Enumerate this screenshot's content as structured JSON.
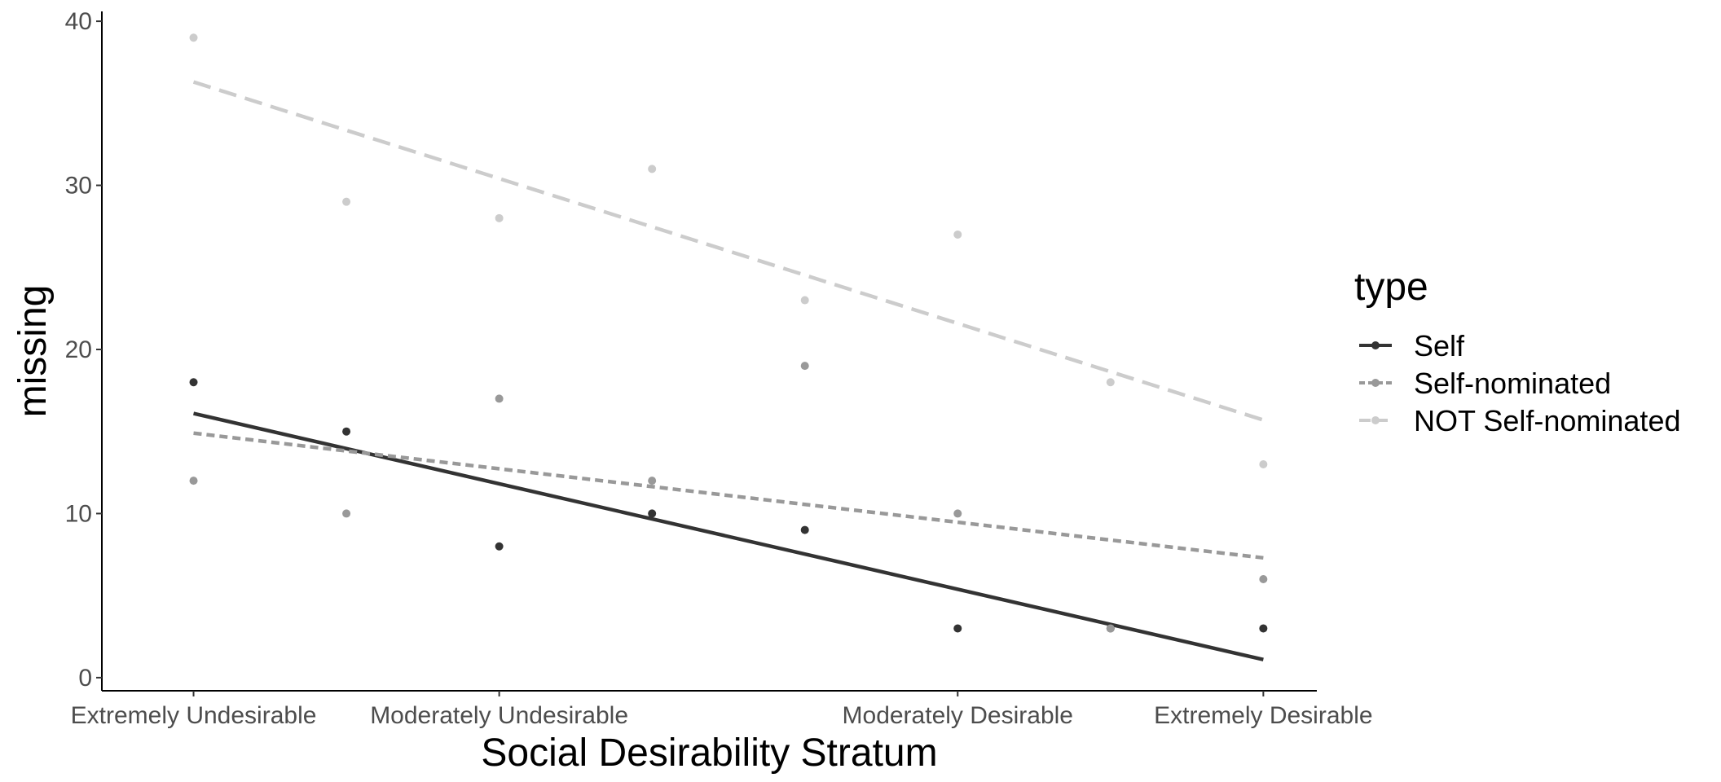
{
  "chart_data": {
    "type": "scatter",
    "xlabel": "Social Desirability Stratum",
    "ylabel": "missing",
    "x_tick_labels": [
      {
        "x": 1,
        "label": "Extremely Undesirable"
      },
      {
        "x": 3,
        "label": "Moderately Undesirable"
      },
      {
        "x": 6,
        "label": "Moderately Desirable"
      },
      {
        "x": 8,
        "label": "Extremely Desirable"
      }
    ],
    "xlim": [
      0.4,
      8.35
    ],
    "ylim": [
      -0.8,
      40.6
    ],
    "y_ticks": [
      0,
      10,
      20,
      30,
      40
    ],
    "grid": false,
    "legend": {
      "title": "type",
      "position": "right"
    },
    "series": [
      {
        "name": "Self",
        "color": "#333333",
        "line_style": "solid",
        "x": [
          1,
          2,
          3,
          4,
          5,
          6,
          7,
          8
        ],
        "y": [
          18,
          15,
          8,
          10,
          9,
          3,
          3,
          3
        ],
        "trend": {
          "start": [
            1,
            16.1
          ],
          "end": [
            8,
            1.1
          ]
        }
      },
      {
        "name": "Self-nominated",
        "color": "#999999",
        "line_style": "dotted",
        "x": [
          1,
          2,
          3,
          4,
          5,
          6,
          7,
          8
        ],
        "y": [
          12,
          10,
          17,
          12,
          19,
          10,
          3,
          6
        ],
        "trend": {
          "start": [
            1,
            14.9
          ],
          "end": [
            8,
            7.3
          ]
        }
      },
      {
        "name": "NOT Self-nominated",
        "color": "#cccccc",
        "line_style": "dashed",
        "x": [
          1,
          2,
          3,
          4,
          5,
          6,
          7,
          8
        ],
        "y": [
          39,
          29,
          28,
          31,
          23,
          27,
          18,
          13
        ],
        "trend": {
          "start": [
            1,
            36.3
          ],
          "end": [
            8,
            15.7
          ]
        }
      }
    ]
  }
}
